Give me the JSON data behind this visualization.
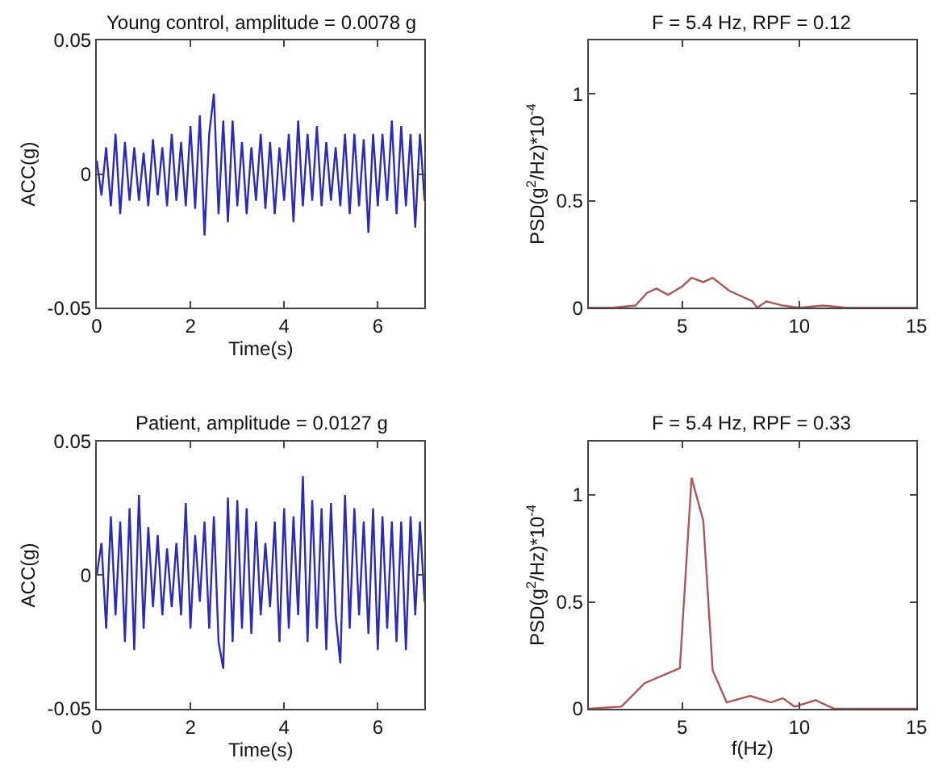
{
  "chart_data": [
    {
      "type": "line",
      "title": "Young control, amplitude = 0.0078 g",
      "xlabel": "Time(s)",
      "ylabel": "ACC(g)",
      "xlim": [
        0,
        7
      ],
      "xticks": [
        0,
        2,
        4,
        6
      ],
      "ylim": [
        -0.05,
        0.05
      ],
      "yticks": [
        -0.05,
        0,
        0.05
      ],
      "x": [
        0,
        0.1,
        0.2,
        0.3,
        0.4,
        0.5,
        0.6,
        0.7,
        0.8,
        0.9,
        1.0,
        1.1,
        1.2,
        1.3,
        1.4,
        1.5,
        1.6,
        1.7,
        1.8,
        1.9,
        2.0,
        2.1,
        2.2,
        2.3,
        2.4,
        2.5,
        2.6,
        2.7,
        2.8,
        2.9,
        3.0,
        3.1,
        3.2,
        3.3,
        3.4,
        3.5,
        3.6,
        3.7,
        3.8,
        3.9,
        4.0,
        4.1,
        4.2,
        4.3,
        4.4,
        4.5,
        4.6,
        4.7,
        4.8,
        4.9,
        5.0,
        5.1,
        5.2,
        5.3,
        5.4,
        5.5,
        5.6,
        5.7,
        5.8,
        5.9,
        6.0,
        6.1,
        6.2,
        6.3,
        6.4,
        6.5,
        6.6,
        6.7,
        6.8,
        6.9,
        7.0
      ],
      "series": [
        {
          "color": "#2b2bb5",
          "values": [
            0.005,
            -0.008,
            0.01,
            -0.012,
            0.015,
            -0.015,
            0.012,
            -0.01,
            0.01,
            -0.01,
            0.008,
            -0.012,
            0.013,
            -0.008,
            0.01,
            -0.012,
            0.015,
            -0.01,
            0.012,
            -0.012,
            0.018,
            -0.013,
            0.022,
            -0.023,
            0.015,
            0.03,
            -0.015,
            0.02,
            -0.018,
            0.02,
            -0.012,
            0.012,
            -0.015,
            0.01,
            -0.01,
            0.015,
            -0.013,
            0.012,
            -0.015,
            0.01,
            -0.01,
            0.015,
            -0.018,
            0.02,
            -0.012,
            0.015,
            -0.01,
            0.018,
            -0.012,
            0.012,
            -0.01,
            0.01,
            -0.012,
            0.015,
            -0.015,
            0.015,
            -0.012,
            0.013,
            -0.022,
            0.015,
            -0.012,
            0.015,
            -0.01,
            0.02,
            -0.015,
            0.018,
            -0.012,
            0.015,
            -0.02,
            0.015,
            -0.01
          ]
        }
      ]
    },
    {
      "type": "line",
      "title": "F = 5.4 Hz, RPF = 0.12",
      "ylabel": "PSD(g$^{2}$/Hz)*10$^{-4}$",
      "xlim": [
        1,
        15
      ],
      "xticks": [
        5,
        10,
        15
      ],
      "ylim": [
        0,
        1.25
      ],
      "yticks": [
        0,
        0.5,
        1
      ],
      "x": [
        1,
        2,
        3,
        3.5,
        3.9,
        4.4,
        5,
        5.4,
        5.9,
        6.3,
        7,
        8,
        8.2,
        8.6,
        9.3,
        10,
        11,
        12,
        15
      ],
      "series": [
        {
          "color": "#a85858",
          "values": [
            0,
            0,
            0.01,
            0.07,
            0.09,
            0.06,
            0.1,
            0.14,
            0.12,
            0.14,
            0.08,
            0.03,
            0,
            0.03,
            0.01,
            0,
            0.01,
            0,
            0
          ]
        }
      ]
    },
    {
      "type": "line",
      "title": "Patient, amplitude = 0.0127 g",
      "xlabel": "Time(s)",
      "ylabel": "ACC(g)",
      "xlim": [
        0,
        7
      ],
      "xticks": [
        0,
        2,
        4,
        6
      ],
      "ylim": [
        -0.05,
        0.05
      ],
      "yticks": [
        -0.05,
        0,
        0.05
      ],
      "x": [
        0,
        0.1,
        0.2,
        0.3,
        0.4,
        0.5,
        0.6,
        0.7,
        0.8,
        0.9,
        1.0,
        1.1,
        1.2,
        1.3,
        1.4,
        1.5,
        1.6,
        1.7,
        1.8,
        1.9,
        2.0,
        2.1,
        2.2,
        2.3,
        2.4,
        2.5,
        2.6,
        2.7,
        2.8,
        2.9,
        3.0,
        3.1,
        3.2,
        3.3,
        3.4,
        3.5,
        3.6,
        3.7,
        3.8,
        3.9,
        4.0,
        4.1,
        4.2,
        4.3,
        4.4,
        4.5,
        4.6,
        4.7,
        4.8,
        4.9,
        5.0,
        5.1,
        5.2,
        5.3,
        5.4,
        5.5,
        5.6,
        5.7,
        5.8,
        5.9,
        6.0,
        6.1,
        6.2,
        6.3,
        6.4,
        6.5,
        6.6,
        6.7,
        6.8,
        6.9,
        7.0
      ],
      "series": [
        {
          "color": "#2b2bb5",
          "values": [
            0.0,
            0.012,
            -0.02,
            0.022,
            -0.015,
            0.02,
            -0.025,
            0.025,
            -0.028,
            0.03,
            -0.02,
            0.018,
            -0.012,
            0.015,
            -0.015,
            0.01,
            -0.012,
            0.012,
            -0.015,
            0.027,
            -0.02,
            0.015,
            -0.01,
            0.02,
            -0.02,
            0.022,
            -0.025,
            -0.035,
            0.029,
            -0.025,
            0.028,
            -0.02,
            0.025,
            -0.022,
            0.02,
            -0.015,
            0.012,
            -0.012,
            0.02,
            -0.025,
            0.025,
            -0.02,
            0.022,
            -0.015,
            0.037,
            -0.025,
            0.028,
            -0.02,
            0.025,
            -0.028,
            0.027,
            -0.015,
            -0.033,
            0.03,
            -0.02,
            0.025,
            -0.015,
            0.02,
            -0.022,
            0.025,
            -0.028,
            0.022,
            -0.02,
            0.02,
            -0.025,
            0.02,
            -0.028,
            0.022,
            -0.015,
            0.02,
            -0.01
          ]
        }
      ]
    },
    {
      "type": "line",
      "title": "F = 5.4 Hz, RPF = 0.33",
      "xlabel": "f(Hz)",
      "ylabel": "PSD(g$^{2}$/Hz)*10$^{-4}$",
      "xlim": [
        1,
        15
      ],
      "xticks": [
        5,
        10,
        15
      ],
      "ylim": [
        0,
        1.25
      ],
      "yticks": [
        0,
        0.5,
        1
      ],
      "x": [
        1,
        2.4,
        3.4,
        4.9,
        5.4,
        5.9,
        6.3,
        6.9,
        7.9,
        8.8,
        9.3,
        9.8,
        10.7,
        11.5,
        15
      ],
      "series": [
        {
          "color": "#a85858",
          "values": [
            0,
            0.01,
            0.12,
            0.19,
            1.08,
            0.88,
            0.18,
            0.03,
            0.06,
            0.03,
            0.05,
            0.01,
            0.04,
            0,
            0
          ]
        }
      ]
    }
  ]
}
